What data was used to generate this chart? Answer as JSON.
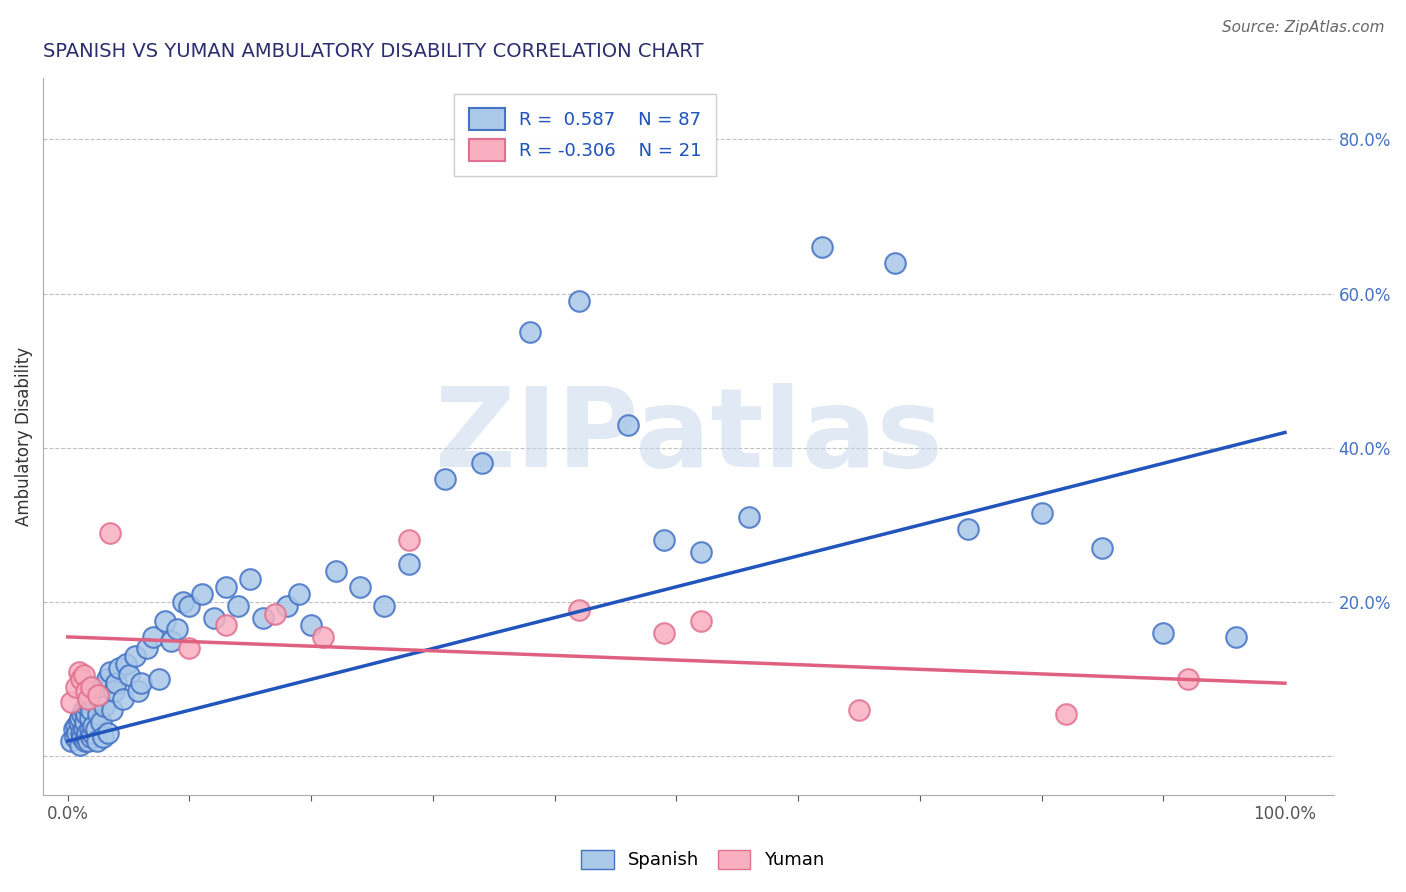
{
  "title": "SPANISH VS YUMAN AMBULATORY DISABILITY CORRELATION CHART",
  "source": "Source: ZipAtlas.com",
  "ylabel": "Ambulatory Disability",
  "xlim": [
    -0.02,
    1.04
  ],
  "ylim": [
    -0.05,
    0.88
  ],
  "xtick_positions": [
    0.0,
    0.1,
    0.2,
    0.3,
    0.4,
    0.5,
    0.6,
    0.7,
    0.8,
    0.9,
    1.0
  ],
  "xticklabels": [
    "0.0%",
    "",
    "",
    "",
    "",
    "",
    "",
    "",
    "",
    "",
    "100.0%"
  ],
  "ytick_positions": [
    0.0,
    0.2,
    0.4,
    0.6,
    0.8
  ],
  "yticklabels_right": [
    "",
    "20.0%",
    "40.0%",
    "60.0%",
    "80.0%"
  ],
  "spanish_face_color": "#aac8e8",
  "spanish_edge_color": "#4472c4",
  "yuman_face_color": "#f8b0c0",
  "yuman_edge_color": "#e07090",
  "line_spanish_color": "#2255bb",
  "line_yuman_color": "#e06080",
  "watermark_text": "ZIPatlas",
  "watermark_color": "#c8d8ec",
  "r_spanish": 0.587,
  "n_spanish": 87,
  "r_yuman": -0.306,
  "n_yuman": 21,
  "title_color": "#2c2c6e",
  "title_fontsize": 14,
  "source_fontsize": 11,
  "axis_label_fontsize": 12,
  "tick_fontsize": 12,
  "legend_fontsize": 13,
  "scatter_size": 220,
  "line_width": 2.5,
  "spanish_x": [
    0.003,
    0.005,
    0.006,
    0.007,
    0.008,
    0.009,
    0.01,
    0.01,
    0.011,
    0.012,
    0.012,
    0.013,
    0.013,
    0.014,
    0.014,
    0.015,
    0.015,
    0.016,
    0.016,
    0.017,
    0.017,
    0.018,
    0.018,
    0.019,
    0.019,
    0.02,
    0.02,
    0.021,
    0.022,
    0.023,
    0.023,
    0.024,
    0.025,
    0.026,
    0.027,
    0.028,
    0.029,
    0.03,
    0.032,
    0.033,
    0.035,
    0.036,
    0.038,
    0.04,
    0.042,
    0.045,
    0.048,
    0.05,
    0.055,
    0.058,
    0.06,
    0.065,
    0.07,
    0.075,
    0.08,
    0.085,
    0.09,
    0.095,
    0.1,
    0.11,
    0.12,
    0.13,
    0.14,
    0.15,
    0.16,
    0.18,
    0.19,
    0.2,
    0.22,
    0.24,
    0.26,
    0.28,
    0.31,
    0.34,
    0.38,
    0.42,
    0.46,
    0.49,
    0.52,
    0.56,
    0.62,
    0.68,
    0.74,
    0.8,
    0.85,
    0.9,
    0.96
  ],
  "spanish_y": [
    0.02,
    0.035,
    0.025,
    0.04,
    0.03,
    0.045,
    0.015,
    0.05,
    0.03,
    0.055,
    0.025,
    0.035,
    0.06,
    0.02,
    0.045,
    0.025,
    0.055,
    0.03,
    0.065,
    0.02,
    0.07,
    0.035,
    0.05,
    0.025,
    0.06,
    0.03,
    0.08,
    0.04,
    0.07,
    0.035,
    0.085,
    0.02,
    0.055,
    0.075,
    0.045,
    0.09,
    0.025,
    0.065,
    0.1,
    0.03,
    0.11,
    0.06,
    0.085,
    0.095,
    0.115,
    0.075,
    0.12,
    0.105,
    0.13,
    0.085,
    0.095,
    0.14,
    0.155,
    0.1,
    0.175,
    0.15,
    0.165,
    0.2,
    0.195,
    0.21,
    0.18,
    0.22,
    0.195,
    0.23,
    0.18,
    0.195,
    0.21,
    0.17,
    0.24,
    0.22,
    0.195,
    0.25,
    0.36,
    0.38,
    0.55,
    0.59,
    0.43,
    0.28,
    0.265,
    0.31,
    0.66,
    0.64,
    0.295,
    0.315,
    0.27,
    0.16,
    0.155
  ],
  "yuman_x": [
    0.003,
    0.007,
    0.009,
    0.011,
    0.013,
    0.015,
    0.017,
    0.019,
    0.025,
    0.035,
    0.1,
    0.13,
    0.17,
    0.21,
    0.28,
    0.42,
    0.49,
    0.52,
    0.65,
    0.82,
    0.92
  ],
  "yuman_y": [
    0.07,
    0.09,
    0.11,
    0.1,
    0.105,
    0.085,
    0.075,
    0.09,
    0.08,
    0.29,
    0.14,
    0.17,
    0.185,
    0.155,
    0.28,
    0.19,
    0.16,
    0.175,
    0.06,
    0.055,
    0.1
  ],
  "line_sp_x0": 0.0,
  "line_sp_y0": 0.02,
  "line_sp_x1": 1.0,
  "line_sp_y1": 0.42,
  "line_yu_x0": 0.0,
  "line_yu_y0": 0.155,
  "line_yu_x1": 1.0,
  "line_yu_y1": 0.095
}
